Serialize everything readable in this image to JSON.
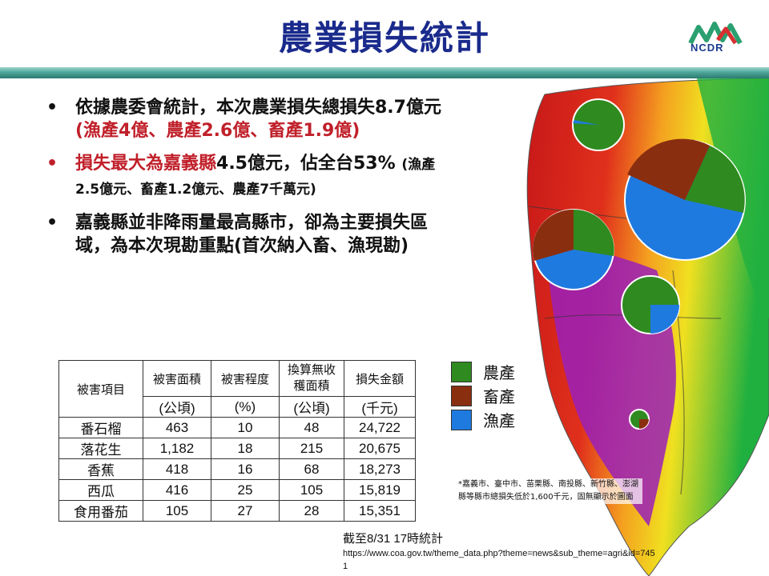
{
  "slide": {
    "title": "農業損失統計",
    "logo_text": "NCDR"
  },
  "bullets": [
    {
      "text_a": "依據農委會統計，本次農業損失總損失8.7億元",
      "text_b": "(漁產4億、農產2.6億、畜產1.9億)"
    },
    {
      "text_a": "損失最大為嘉義縣",
      "text_b": "4.5億元，佔全台53%",
      "text_c": "(漁產2.5億元、畜產1.2億元、農產7千萬元)"
    },
    {
      "text_a": "嘉義縣並非降雨量最高縣市，卻為主要損失區域，為本次現勘重點(首次納入畜、漁現勘)"
    }
  ],
  "table": {
    "headers": [
      "被害項目",
      "被害面積",
      "被害程度",
      "換算無收穫面積",
      "損失金額"
    ],
    "units": [
      "(公頃)",
      "(%)",
      "(公頃)",
      "(千元)"
    ],
    "rows": [
      [
        "番石榴",
        "463",
        "10",
        "48",
        "24,722"
      ],
      [
        "落花生",
        "1,182",
        "18",
        "215",
        "20,675"
      ],
      [
        "香蕉",
        "418",
        "16",
        "68",
        "18,273"
      ],
      [
        "西瓜",
        "416",
        "25",
        "105",
        "15,819"
      ],
      [
        "食用番茄",
        "105",
        "27",
        "28",
        "15,351"
      ]
    ]
  },
  "legend": [
    {
      "label": "農產",
      "color": "#2f8a1f"
    },
    {
      "label": "畜產",
      "color": "#8a2e10"
    },
    {
      "label": "漁產",
      "color": "#1f7ae0"
    }
  ],
  "footnote": "*嘉義市、臺中市、苗栗縣、南投縣、新竹縣、澎湖縣等縣市總損失低於1,600千元，固無顯示於圖面",
  "as_of": "截至8/31 17時統計",
  "source_url": "https://www.coa.gov.tw/theme_data.php?theme=news&sub_theme=agri&id=7451"
}
